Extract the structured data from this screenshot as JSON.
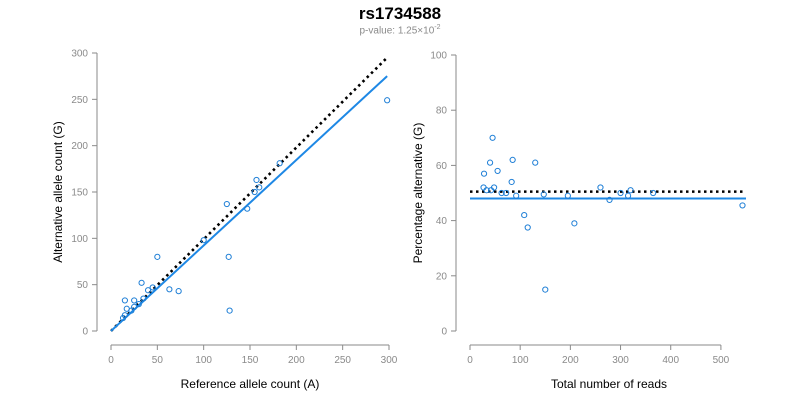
{
  "title": "rs1734588",
  "subtitle": {
    "prefix": "p-value: 1.25×10",
    "exponent": "-2"
  },
  "colors": {
    "point": "#1f7fd6",
    "fit_line": "#1e88e5",
    "expected_line": "#000000",
    "axis": "#8a8a8a"
  },
  "chart_data": [
    {
      "type": "scatter",
      "xlabel": "Reference allele count (A)",
      "ylabel": "Alternative allele count (G)",
      "xlim": [
        0,
        300
      ],
      "ylim": [
        0,
        300
      ],
      "xticks": [
        0,
        50,
        100,
        150,
        200,
        250,
        300
      ],
      "yticks": [
        0,
        50,
        100,
        150,
        200,
        250,
        300
      ],
      "grid": false,
      "points": [
        [
          13,
          14
        ],
        [
          15,
          17
        ],
        [
          15,
          33
        ],
        [
          17,
          24
        ],
        [
          22,
          22
        ],
        [
          25,
          26
        ],
        [
          25,
          33
        ],
        [
          30,
          29
        ],
        [
          33,
          52
        ],
        [
          35,
          35
        ],
        [
          40,
          44
        ],
        [
          45,
          47
        ],
        [
          50,
          80
        ],
        [
          63,
          45
        ],
        [
          73,
          43
        ],
        [
          100,
          98
        ],
        [
          125,
          137
        ],
        [
          127,
          80
        ],
        [
          128,
          22
        ],
        [
          147,
          132
        ],
        [
          155,
          150
        ],
        [
          157,
          163
        ],
        [
          160,
          155
        ],
        [
          182,
          181
        ],
        [
          298,
          249
        ]
      ],
      "reference_line": {
        "style": "dotted",
        "from": [
          0,
          0
        ],
        "to": [
          298,
          295
        ]
      },
      "fit_line": {
        "style": "solid",
        "from": [
          0,
          0
        ],
        "to": [
          298,
          275
        ]
      }
    },
    {
      "type": "scatter",
      "xlabel": "Total number of reads",
      "ylabel": "Percentage alternative (G)",
      "xlim": [
        0,
        550
      ],
      "ylim": [
        0,
        100
      ],
      "xticks": [
        0,
        100,
        200,
        300,
        400,
        500
      ],
      "yticks": [
        0,
        20,
        40,
        60,
        80,
        100
      ],
      "grid": false,
      "points": [
        [
          27,
          52
        ],
        [
          28,
          57
        ],
        [
          33,
          51
        ],
        [
          40,
          61
        ],
        [
          42,
          51
        ],
        [
          45,
          70
        ],
        [
          48,
          52
        ],
        [
          55,
          58
        ],
        [
          63,
          50
        ],
        [
          72,
          50
        ],
        [
          83,
          54
        ],
        [
          85,
          62
        ],
        [
          92,
          49
        ],
        [
          108,
          42
        ],
        [
          115,
          37.5
        ],
        [
          130,
          61
        ],
        [
          147,
          49.5
        ],
        [
          150,
          15
        ],
        [
          195,
          49
        ],
        [
          208,
          39
        ],
        [
          260,
          52
        ],
        [
          278,
          47.5
        ],
        [
          300,
          50
        ],
        [
          315,
          49
        ],
        [
          320,
          51
        ],
        [
          365,
          50
        ],
        [
          543,
          45.5
        ]
      ],
      "reference_line": {
        "style": "dotted",
        "y": 50.5
      },
      "fit_line": {
        "style": "solid",
        "y": 48
      }
    }
  ]
}
